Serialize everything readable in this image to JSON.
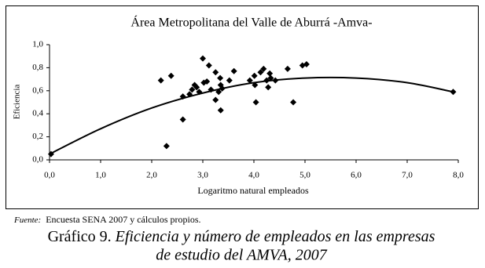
{
  "chart_data": {
    "type": "scatter",
    "title": "Área Metropolitana del Valle de Aburrá -Amva-",
    "x_label": "Logaritmo natural empleados",
    "y_label": "Eficiencia",
    "color": "#000000",
    "x": [
      0.03,
      2.18,
      2.38,
      2.29,
      2.61,
      2.61,
      2.74,
      2.79,
      2.84,
      2.88,
      2.93,
      3.0,
      3.02,
      3.08,
      3.12,
      3.16,
      3.25,
      3.25,
      3.31,
      3.34,
      3.35,
      3.35,
      3.38,
      3.52,
      3.61,
      3.92,
      4.01,
      4.02,
      4.04,
      4.13,
      4.19,
      4.25,
      4.28,
      4.31,
      4.33,
      4.42,
      4.66,
      4.77,
      4.95,
      5.03,
      7.9
    ],
    "values": [
      0.05,
      0.69,
      0.73,
      0.12,
      0.35,
      0.55,
      0.57,
      0.61,
      0.65,
      0.63,
      0.59,
      0.88,
      0.67,
      0.68,
      0.82,
      0.61,
      0.76,
      0.52,
      0.59,
      0.71,
      0.65,
      0.43,
      0.62,
      0.69,
      0.77,
      0.69,
      0.73,
      0.65,
      0.5,
      0.76,
      0.79,
      0.69,
      0.63,
      0.75,
      0.71,
      0.69,
      0.79,
      0.5,
      0.82,
      0.83,
      0.59
    ],
    "trendline": {
      "x": [
        0,
        1,
        2,
        3,
        4,
        5,
        6,
        7,
        7.9
      ],
      "values": [
        0.05,
        0.27,
        0.45,
        0.58,
        0.67,
        0.71,
        0.71,
        0.67,
        0.59
      ]
    },
    "xlim": [
      0,
      8
    ],
    "ylim": [
      0,
      1
    ],
    "xticks": [
      {
        "value": 0,
        "label": "0,0"
      },
      {
        "value": 1,
        "label": "1,0"
      },
      {
        "value": 2,
        "label": "2,0"
      },
      {
        "value": 3,
        "label": "3,0"
      },
      {
        "value": 4,
        "label": "4,0"
      },
      {
        "value": 5,
        "label": "5,0"
      },
      {
        "value": 6,
        "label": "6,0"
      },
      {
        "value": 7,
        "label": "7,0"
      },
      {
        "value": 8,
        "label": "8,0"
      }
    ],
    "yticks": [
      {
        "value": 0,
        "label": "0,0"
      },
      {
        "value": 0.2,
        "label": "0,2"
      },
      {
        "value": 0.4,
        "label": "0,4"
      },
      {
        "value": 0.6,
        "label": "0,6"
      },
      {
        "value": 0.8,
        "label": "0,8"
      },
      {
        "value": 1,
        "label": "1,0"
      }
    ],
    "grid": false,
    "source_label": "Fuente:",
    "source_text": "Encuesta SENA 2007 y cálculos propios.",
    "caption_label": "Gráfico 9.",
    "caption_lines": [
      "Eficiencia y número de empleados en las empresas",
      "de estudio del AMVA, 2007"
    ]
  }
}
